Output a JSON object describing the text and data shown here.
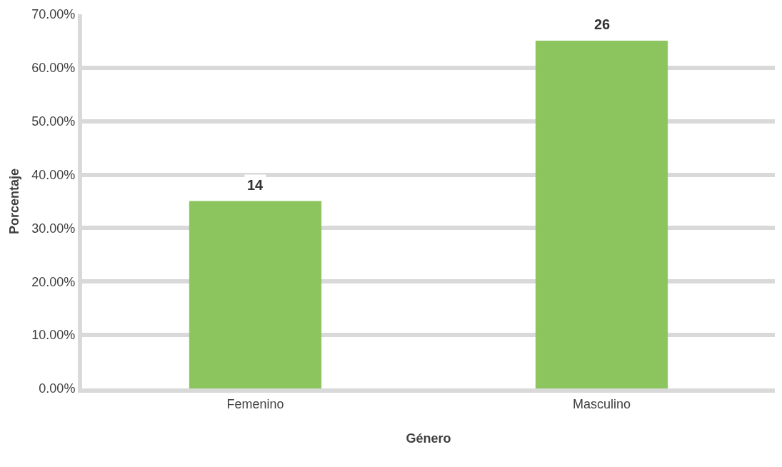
{
  "chart_data": {
    "type": "bar",
    "xlabel": "Género",
    "ylabel": "Porcentaje",
    "categories": [
      "Femenino",
      "Masculino"
    ],
    "values": [
      35,
      65
    ],
    "color": "#8cc45e",
    "annotations": [
      {
        "text": "14",
        "x": "Femenino",
        "y": 35
      },
      {
        "text": "26",
        "x": "Masculino",
        "y": 65
      }
    ],
    "ylim": [
      0,
      70
    ],
    "yticks": [
      {
        "value": 0,
        "label": "0.00%"
      },
      {
        "value": 10,
        "label": "10.00%"
      },
      {
        "value": 20,
        "label": "20.00%"
      },
      {
        "value": 30,
        "label": "30.00%"
      },
      {
        "value": 40,
        "label": "40.00%"
      },
      {
        "value": 50,
        "label": "50.00%"
      },
      {
        "value": 60,
        "label": "60.00%"
      },
      {
        "value": 70,
        "label": "70.00%"
      }
    ],
    "grid": "y"
  }
}
